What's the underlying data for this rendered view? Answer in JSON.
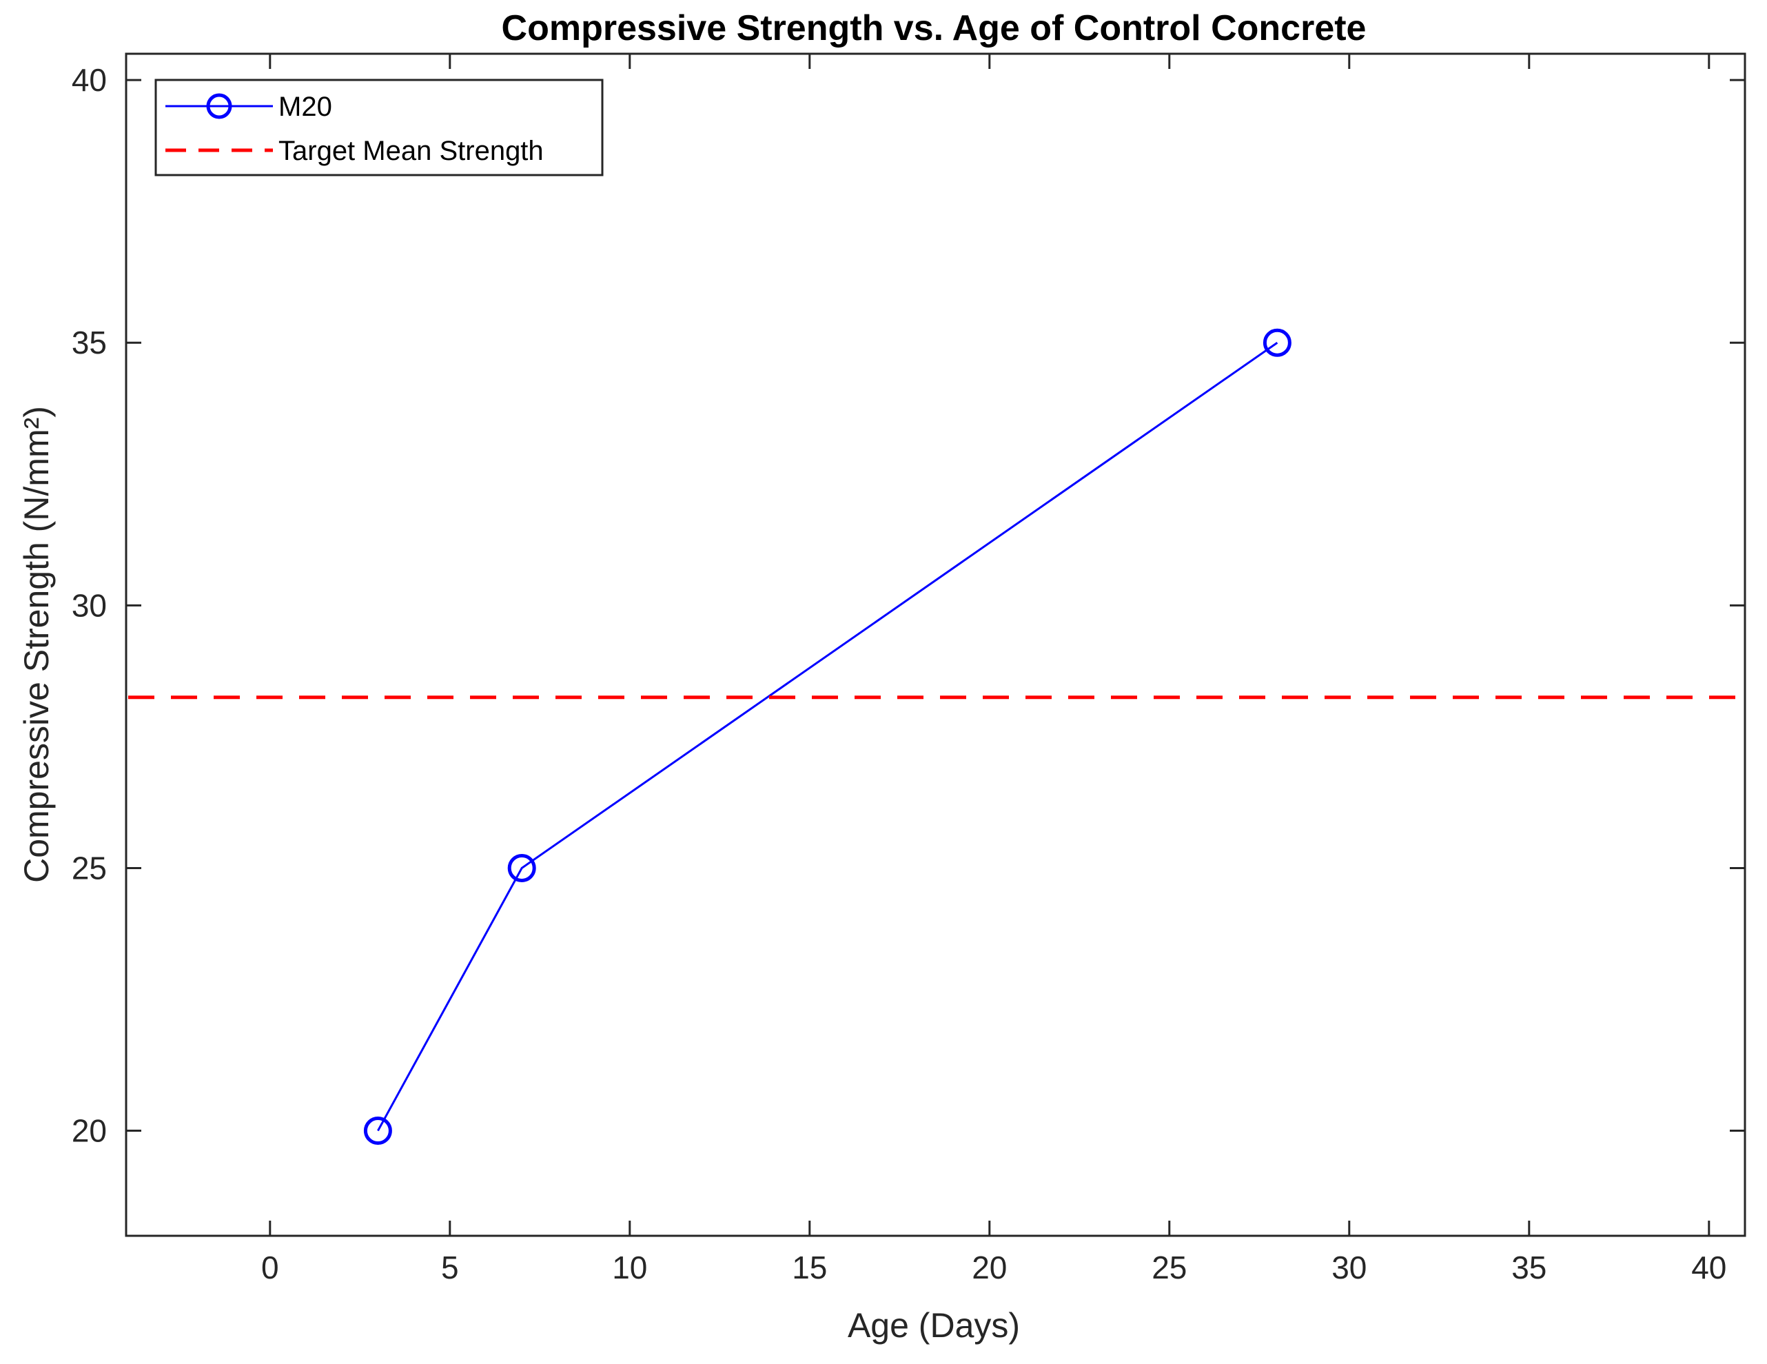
{
  "chart_data": {
    "type": "line",
    "title": "Compressive Strength vs. Age of Control Concrete",
    "xlabel": "Age (Days)",
    "ylabel": "Compressive Strength (N/mm²)",
    "xlim": [
      -4,
      41
    ],
    "ylim": [
      18,
      40.5
    ],
    "xticks": [
      0,
      5,
      10,
      15,
      20,
      25,
      30,
      35,
      40
    ],
    "yticks": [
      20,
      25,
      30,
      35,
      40
    ],
    "grid": false,
    "legend_position": "top-left",
    "series": [
      {
        "name": "M20",
        "style": "solid",
        "marker": "circle",
        "color": "#0000ff",
        "x": [
          3,
          7,
          28
        ],
        "y": [
          20,
          25,
          35
        ]
      },
      {
        "name": "Target Mean Strength",
        "style": "dashed",
        "marker": "none",
        "color": "#ff0000",
        "y": 28.25
      }
    ]
  }
}
